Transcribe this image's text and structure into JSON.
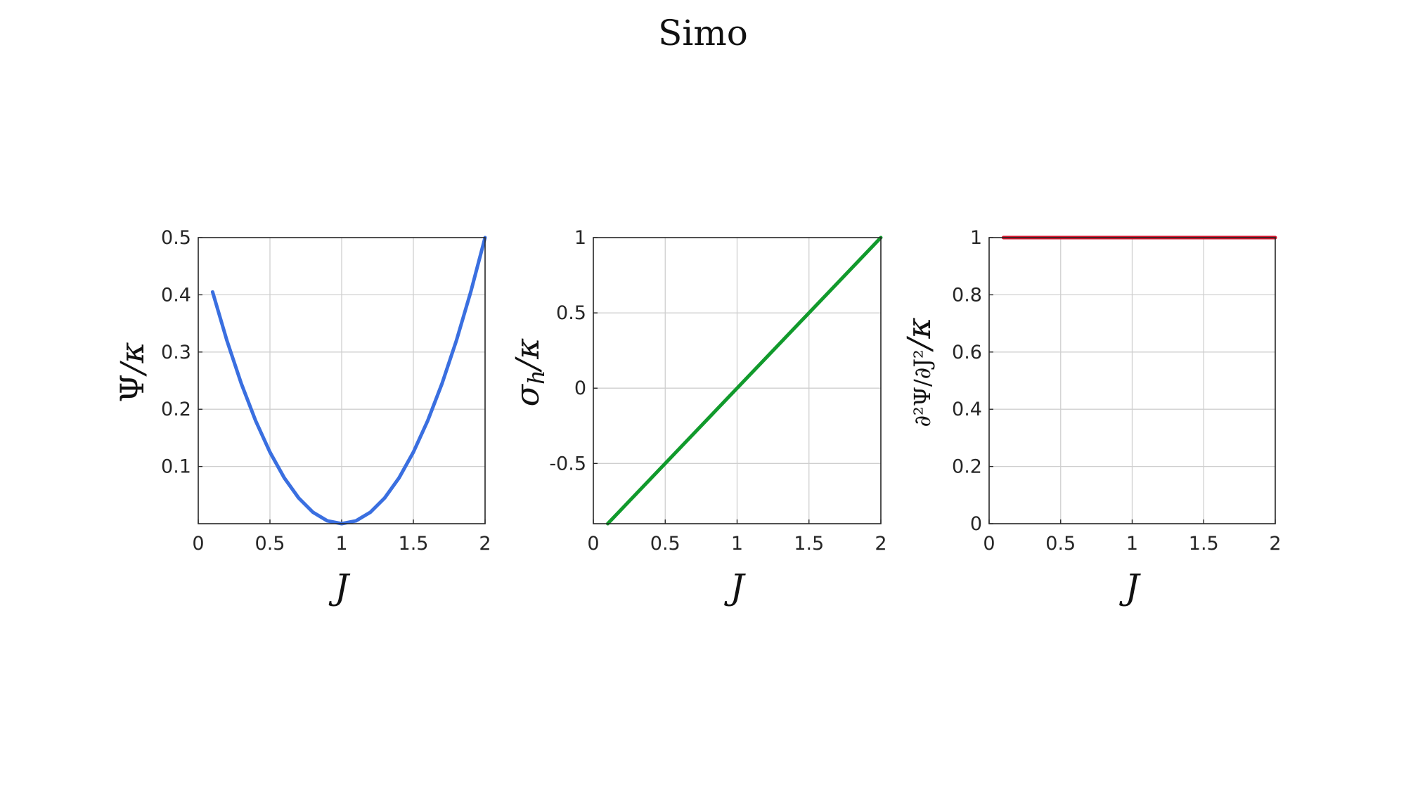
{
  "figure": {
    "title": "Simo"
  },
  "chart_data": [
    {
      "type": "line",
      "xlabel": "J",
      "ylabel": "Ψ/κ",
      "xlim": [
        0,
        2
      ],
      "ylim": [
        0,
        0.5
      ],
      "xticks": [
        0,
        0.5,
        1,
        1.5,
        2
      ],
      "xtick_labels": [
        "0",
        "0.5",
        "1",
        "1.5",
        "2"
      ],
      "yticks": [
        0.1,
        0.2,
        0.3,
        0.4,
        0.5
      ],
      "ytick_labels": [
        "0.1",
        "0.2",
        "0.3",
        "0.4",
        "0.5"
      ],
      "grid": true,
      "series": [
        {
          "color": "#3a6fe0",
          "x": [
            0.1,
            0.2,
            0.3,
            0.4,
            0.5,
            0.6,
            0.7,
            0.8,
            0.9,
            1.0,
            1.1,
            1.2,
            1.3,
            1.4,
            1.5,
            1.6,
            1.7,
            1.8,
            1.9,
            2.0
          ],
          "y": [
            0.405,
            0.32,
            0.245,
            0.18,
            0.125,
            0.08,
            0.045,
            0.02,
            0.005,
            0.0,
            0.005,
            0.02,
            0.045,
            0.08,
            0.125,
            0.18,
            0.245,
            0.32,
            0.405,
            0.5
          ]
        }
      ]
    },
    {
      "type": "line",
      "xlabel": "J",
      "ylabel": "σh/κ",
      "xlim": [
        0,
        2
      ],
      "ylim": [
        -0.9,
        1
      ],
      "xticks": [
        0,
        0.5,
        1,
        1.5,
        2
      ],
      "xtick_labels": [
        "0",
        "0.5",
        "1",
        "1.5",
        "2"
      ],
      "yticks": [
        -0.5,
        0,
        0.5,
        1
      ],
      "ytick_labels": [
        "-0.5",
        "0",
        "0.5",
        "1"
      ],
      "grid": true,
      "series": [
        {
          "color": "#119a2c",
          "x": [
            0.1,
            2.0
          ],
          "y": [
            -0.9,
            1.0
          ]
        }
      ]
    },
    {
      "type": "line",
      "xlabel": "J",
      "ylabel": "∂²Ψ/∂J²/κ",
      "xlim": [
        0,
        2
      ],
      "ylim": [
        0,
        1
      ],
      "xticks": [
        0,
        0.5,
        1,
        1.5,
        2
      ],
      "xtick_labels": [
        "0",
        "0.5",
        "1",
        "1.5",
        "2"
      ],
      "yticks": [
        0,
        0.2,
        0.4,
        0.6,
        0.8,
        1
      ],
      "ytick_labels": [
        "0",
        "0.2",
        "0.4",
        "0.6",
        "0.8",
        "1"
      ],
      "grid": true,
      "series": [
        {
          "color": "#d4162c",
          "x": [
            0.1,
            2.0
          ],
          "y": [
            1.0,
            1.0
          ]
        }
      ]
    }
  ]
}
